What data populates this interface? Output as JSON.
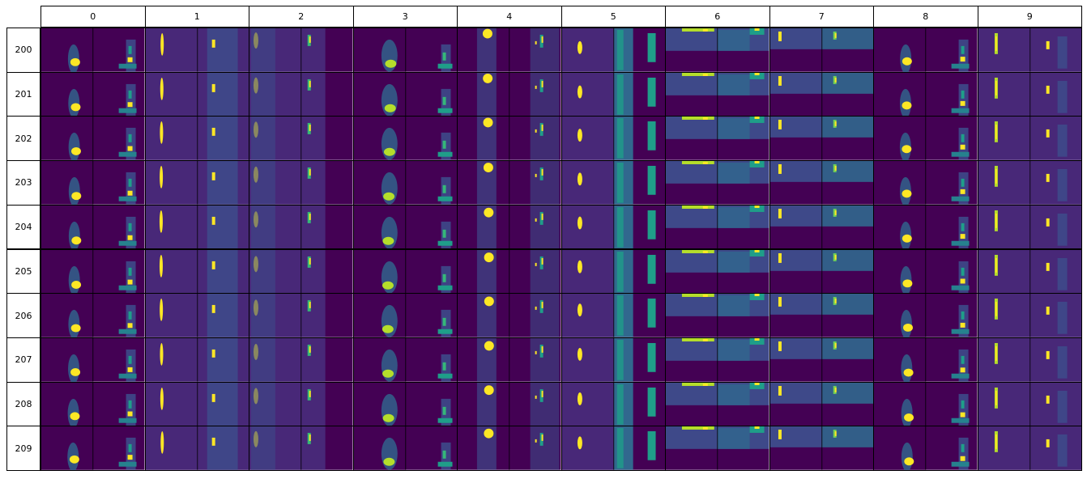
{
  "chart_data": {
    "type": "heatmap",
    "description_grid": "image grid: rows are sample indices, columns are channel indices; each cell shows two heatmap panels (viridis)",
    "columns": [
      "0",
      "1",
      "2",
      "3",
      "4",
      "5",
      "6",
      "7",
      "8",
      "9"
    ],
    "rows": [
      "200",
      "201",
      "202",
      "203",
      "204",
      "205",
      "206",
      "207",
      "208",
      "209"
    ],
    "colormap": [
      "#440154",
      "#482878",
      "#3e4989",
      "#31688e",
      "#26828e",
      "#1f9e89",
      "#35b779",
      "#6ece58",
      "#b5de2b",
      "#fde725"
    ],
    "background_color": "#440154",
    "cell_pattern": {
      "0": "bright blob lower-left panel, small bright spot in right panel with faint structure",
      "1": "narrow bright vertical streak left panel, faint field right panel",
      "2": "bright spot top-left with streak, faint column right panel",
      "3": "bright blob near bottom, small bright spot right panel",
      "4": "bright blob near top, thin bright marks right panel",
      "5": "bright streak left panel, green edge column right panel",
      "6": "bright band along top edge, textured field",
      "7": "bright marks upper-left, textured right panel",
      "8": "bright blob lower-left, small bright spot right panel",
      "9": "bright vertical streak, small bright spot right panel"
    }
  }
}
